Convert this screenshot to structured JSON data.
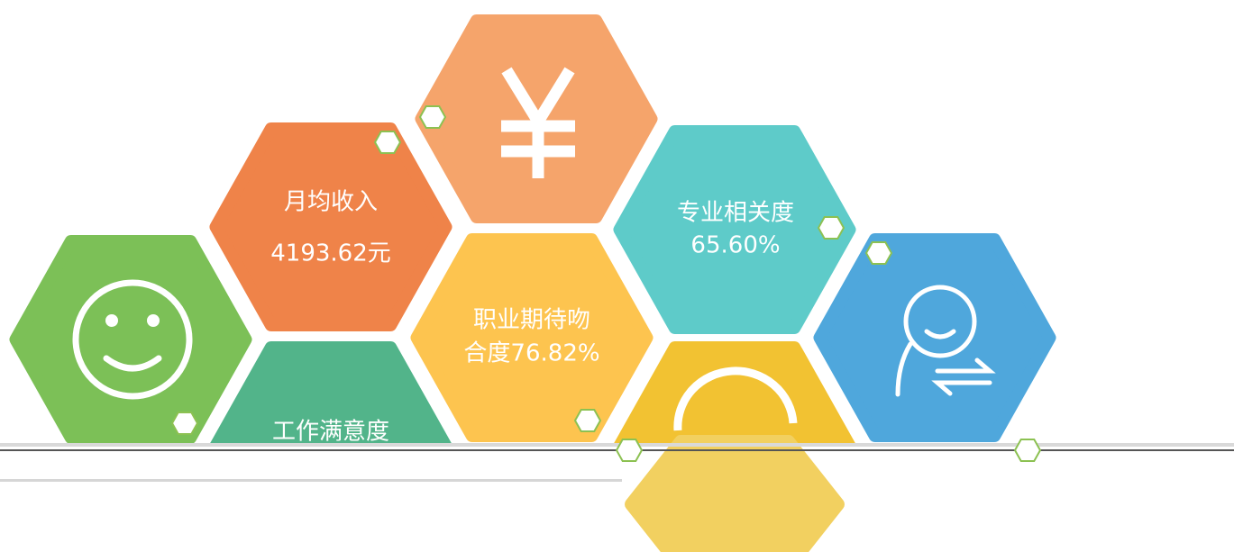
{
  "tiles": [
    {
      "lines": [
        "月均收入",
        "4193.62元"
      ]
    },
    {
      "lines": [
        "专业相关度",
        "65.60%"
      ]
    },
    {
      "lines": [
        "职业期待吻",
        "合度76.82%"
      ]
    },
    {
      "lines": [
        "工作满意度"
      ]
    }
  ]
}
